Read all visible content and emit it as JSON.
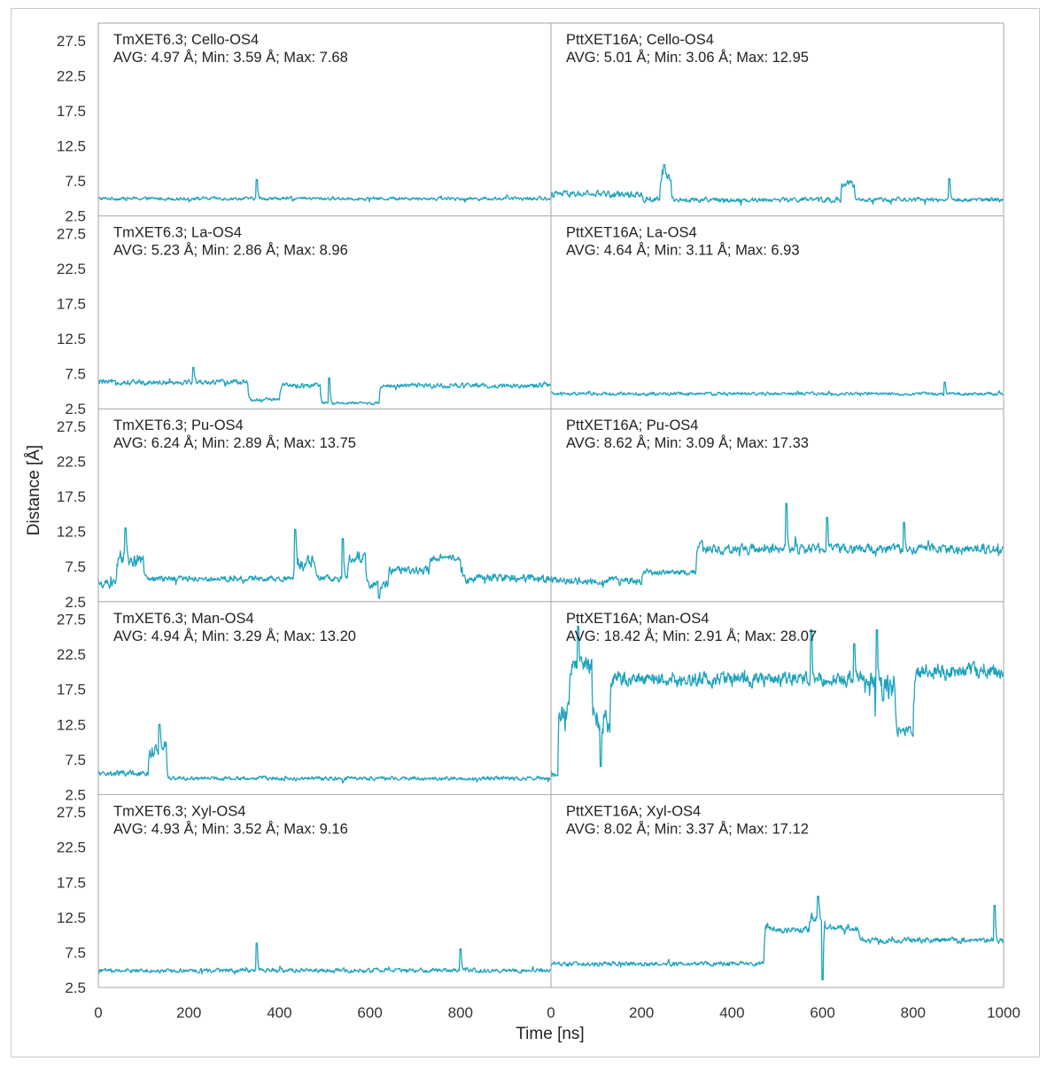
{
  "chart_data": {
    "type": "line",
    "xlabel": "Time [ns]",
    "ylabel": "Distance [Å]",
    "xlim": [
      0,
      1000
    ],
    "ylim": [
      2.5,
      30
    ],
    "x_ticks": [
      "0",
      "200",
      "400",
      "600",
      "800",
      "1000"
    ],
    "x_ticks_left": [
      "0",
      "200",
      "400",
      "600",
      "800"
    ],
    "y_ticks": [
      "2.5",
      "7.5",
      "12.5",
      "17.5",
      "22.5",
      "27.5"
    ],
    "color": "#1ea2bd",
    "panels": [
      {
        "protein": "TmXET6.3",
        "title": "TmXET6.3; Cello-OS4",
        "stats": "AVG: 4.97 Å; Min: 3.59 Å; Max: 7.68",
        "avg": 4.97,
        "min": 3.59,
        "max": 7.68,
        "segments": [
          [
            0,
            1000,
            4.97,
            0.35
          ]
        ],
        "spikes": [
          [
            350,
            7.68
          ]
        ]
      },
      {
        "protein": "PttXET16A",
        "title": "PttXET16A; Cello-OS4",
        "stats": "AVG: 5.01 Å; Min: 3.06 Å; Max: 12.95",
        "avg": 5.01,
        "min": 3.06,
        "max": 12.95,
        "segments": [
          [
            0,
            200,
            5.6,
            0.7
          ],
          [
            200,
            240,
            4.8,
            0.5
          ],
          [
            240,
            265,
            8.0,
            1.0
          ],
          [
            265,
            640,
            4.8,
            0.5
          ],
          [
            640,
            670,
            7.0,
            0.8
          ],
          [
            670,
            1000,
            4.8,
            0.45
          ]
        ],
        "spikes": [
          [
            250,
            9.8
          ],
          [
            880,
            7.8
          ]
        ]
      },
      {
        "protein": "TmXET6.3",
        "title": "TmXET6.3; La-OS4",
        "stats": "AVG: 5.23 Å; Min: 2.86 Å; Max: 8.96",
        "avg": 5.23,
        "min": 2.86,
        "max": 8.96,
        "segments": [
          [
            0,
            330,
            6.3,
            0.55
          ],
          [
            330,
            400,
            3.8,
            0.4
          ],
          [
            400,
            490,
            5.8,
            0.55
          ],
          [
            490,
            620,
            3.3,
            0.3
          ],
          [
            620,
            1000,
            5.8,
            0.5
          ]
        ],
        "spikes": [
          [
            210,
            8.4
          ],
          [
            510,
            6.9
          ]
        ]
      },
      {
        "protein": "PttXET16A",
        "title": "PttXET16A; La-OS4",
        "stats": "AVG: 4.64 Å; Min: 3.11 Å; Max: 6.93",
        "avg": 4.64,
        "min": 3.11,
        "max": 6.93,
        "segments": [
          [
            0,
            1000,
            4.64,
            0.35
          ]
        ],
        "spikes": [
          [
            870,
            6.3
          ]
        ]
      },
      {
        "protein": "TmXET6.3",
        "title": "TmXET6.3; Pu-OS4",
        "stats": "AVG: 6.24 Å; Min: 2.89 Å; Max: 13.75",
        "avg": 6.24,
        "min": 2.89,
        "max": 13.75,
        "segments": [
          [
            0,
            40,
            5.0,
            1.0
          ],
          [
            40,
            100,
            8.5,
            1.8
          ],
          [
            100,
            430,
            5.8,
            0.6
          ],
          [
            430,
            480,
            8.0,
            1.6
          ],
          [
            480,
            550,
            5.8,
            0.7
          ],
          [
            550,
            590,
            9.0,
            1.4
          ],
          [
            590,
            640,
            5.0,
            0.9
          ],
          [
            640,
            730,
            7.0,
            0.9
          ],
          [
            730,
            800,
            8.8,
            0.8
          ],
          [
            800,
            1000,
            5.8,
            0.9
          ]
        ],
        "spikes": [
          [
            60,
            13.0
          ],
          [
            435,
            12.8
          ],
          [
            540,
            11.5
          ],
          [
            620,
            3.0
          ]
        ]
      },
      {
        "protein": "PttXET16A",
        "title": "PttXET16A; Pu-OS4",
        "stats": "AVG: 8.62 Å; Min: 3.09 Å; Max: 17.33",
        "avg": 8.62,
        "min": 3.09,
        "max": 17.33,
        "segments": [
          [
            0,
            200,
            5.5,
            0.8
          ],
          [
            200,
            320,
            6.7,
            0.6
          ],
          [
            320,
            340,
            10.5,
            0.9
          ],
          [
            340,
            1000,
            10.0,
            1.0
          ]
        ],
        "spikes": [
          [
            520,
            16.5
          ],
          [
            610,
            14.5
          ],
          [
            780,
            13.8
          ]
        ]
      },
      {
        "protein": "TmXET6.3",
        "title": "TmXET6.3; Man-OS4",
        "stats": "AVG: 4.94 Å; Min: 3.29 Å; Max: 13.20",
        "avg": 4.94,
        "min": 3.29,
        "max": 13.2,
        "segments": [
          [
            0,
            110,
            5.5,
            0.6
          ],
          [
            110,
            150,
            9.0,
            1.8
          ],
          [
            150,
            1000,
            4.8,
            0.4
          ]
        ],
        "spikes": [
          [
            135,
            12.5
          ]
        ]
      },
      {
        "protein": "PttXET16A",
        "title": "PttXET16A; Man-OS4",
        "stats": "AVG: 18.42 Å; Min: 2.91 Å; Max: 28.07",
        "avg": 18.42,
        "min": 2.91,
        "max": 28.07,
        "segments": [
          [
            0,
            15,
            5.0,
            1.0
          ],
          [
            15,
            40,
            15.0,
            3.5
          ],
          [
            40,
            90,
            21.0,
            1.8
          ],
          [
            90,
            130,
            13.0,
            3.0
          ],
          [
            130,
            690,
            19.0,
            1.5
          ],
          [
            690,
            760,
            17.5,
            2.8
          ],
          [
            760,
            800,
            11.5,
            1.2
          ],
          [
            800,
            1000,
            20.0,
            1.6
          ]
        ],
        "spikes": [
          [
            60,
            26.5
          ],
          [
            575,
            26.0
          ],
          [
            670,
            24.0
          ],
          [
            720,
            26.0
          ],
          [
            110,
            6.5
          ]
        ]
      },
      {
        "protein": "TmXET6.3",
        "title": "TmXET6.3; Xyl-OS4",
        "stats": "AVG: 4.93 Å; Min: 3.52 Å; Max: 9.16",
        "avg": 4.93,
        "min": 3.52,
        "max": 9.16,
        "segments": [
          [
            0,
            1000,
            4.93,
            0.45
          ]
        ],
        "spikes": [
          [
            350,
            8.8
          ],
          [
            800,
            8.0
          ]
        ]
      },
      {
        "protein": "PttXET16A",
        "title": "PttXET16A; Xyl-OS4",
        "stats": "AVG: 8.02 Å; Min: 3.37 Å; Max: 17.12",
        "avg": 8.02,
        "min": 3.37,
        "max": 17.12,
        "segments": [
          [
            0,
            470,
            5.9,
            0.5
          ],
          [
            470,
            480,
            11.0,
            1.2
          ],
          [
            480,
            570,
            10.7,
            0.7
          ],
          [
            570,
            605,
            12.5,
            1.0
          ],
          [
            605,
            680,
            11.0,
            0.6
          ],
          [
            680,
            1000,
            9.2,
            0.6
          ]
        ],
        "spikes": [
          [
            590,
            15.5
          ],
          [
            600,
            3.6
          ],
          [
            980,
            14.2
          ]
        ]
      }
    ]
  }
}
